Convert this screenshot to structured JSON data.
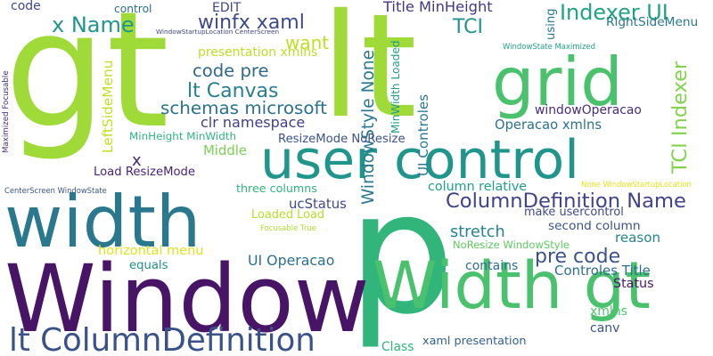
{
  "words": [
    {
      "text": "gt",
      "color": "#a0da39"
    },
    {
      "text": "lt",
      "color": "#a0da39"
    },
    {
      "text": "p",
      "color": "#31b57b"
    },
    {
      "text": "Window",
      "color": "#471466"
    },
    {
      "text": "width",
      "color": "#2a788e"
    },
    {
      "text": "user control",
      "color": "#1f958b"
    },
    {
      "text": "grid",
      "color": "#4ac16d"
    },
    {
      "text": "Width gt",
      "color": "#4ac16d"
    },
    {
      "text": "lt ColumnDefinition",
      "color": "#3a528b"
    },
    {
      "text": "x Name",
      "color": "#1f958b"
    },
    {
      "text": "winfx xaml",
      "color": "#3e4989"
    },
    {
      "text": "lt Canvas",
      "color": "#277f8e"
    },
    {
      "text": "Indexer UI",
      "color": "#20a486"
    },
    {
      "text": "schemas microsoft",
      "color": "#2c728e"
    },
    {
      "text": "code pre",
      "color": "#31688e"
    },
    {
      "text": "ColumnDefinition Name",
      "color": "#404387"
    },
    {
      "text": "TCI Indexer",
      "color": "#81d34d"
    },
    {
      "text": "RightSideMenu",
      "color": "#2a788e"
    },
    {
      "text": "TCI",
      "color": "#1f958b"
    },
    {
      "text": "want",
      "color": "#c2df23"
    },
    {
      "text": "presentation xmlns",
      "color": "#bddf26"
    },
    {
      "text": "stretch",
      "color": "#26828e"
    },
    {
      "text": "pre code",
      "color": "#3b528b"
    },
    {
      "text": "Title MinHeight",
      "color": "#443983"
    },
    {
      "text": "WindowStyle None",
      "color": "#2a788e"
    },
    {
      "text": "MinWidth Loaded",
      "color": "#1f9e89"
    },
    {
      "text": "UI Controles",
      "color": "#2a788e"
    },
    {
      "text": "windowOperacao",
      "color": "#472d7b"
    },
    {
      "text": "Operacao xmlns",
      "color": "#2c728e"
    },
    {
      "text": "clr namespace",
      "color": "#433e85"
    },
    {
      "text": "LeftSideMenu",
      "color": "#c2df23"
    },
    {
      "text": "MinHeight MinWidth",
      "color": "#2fb47c"
    },
    {
      "text": "ResizeMode NoResize",
      "color": "#3b528b"
    },
    {
      "text": "Middle",
      "color": "#7ad151"
    },
    {
      "text": "Load ResizeMode",
      "color": "#482576"
    },
    {
      "text": "x",
      "color": "#482878"
    },
    {
      "text": "three columns",
      "color": "#2fb47c"
    },
    {
      "text": "ucStatus",
      "color": "#3e4989"
    },
    {
      "text": "Loaded Load",
      "color": "#b5de2b"
    },
    {
      "text": "column relative",
      "color": "#1fa088"
    },
    {
      "text": "make usercontrol",
      "color": "#3f4788"
    },
    {
      "text": "second column",
      "color": "#3b528b"
    },
    {
      "text": "reason",
      "color": "#25858e"
    },
    {
      "text": "horizontal menu",
      "color": "#dfe318"
    },
    {
      "text": "NoResize WindowStyle",
      "color": "#5ec962"
    },
    {
      "text": "equals",
      "color": "#21908d"
    },
    {
      "text": "contains",
      "color": "#2e6e8e"
    },
    {
      "text": "Controles Title",
      "color": "#2e6f8e"
    },
    {
      "text": "Status",
      "color": "#481668"
    },
    {
      "text": "UI Operacao",
      "color": "#2d708e"
    },
    {
      "text": "xmlns",
      "color": "#50c46a"
    },
    {
      "text": "canv",
      "color": "#3a548c"
    },
    {
      "text": "Class",
      "color": "#2fb47c"
    },
    {
      "text": "xaml presentation",
      "color": "#34618d"
    },
    {
      "text": "EDIT",
      "color": "#414487"
    },
    {
      "text": "control",
      "color": "#2d718e"
    },
    {
      "text": "code",
      "color": "#3e4989"
    },
    {
      "text": "using",
      "color": "#2a778e"
    },
    {
      "text": "WindowStartupLocation CenterScreen",
      "color": "#3f4889"
    },
    {
      "text": "WindowState Maximized",
      "color": "#1fa187"
    },
    {
      "text": "Maximized Focusable",
      "color": "#46307e"
    },
    {
      "text": "CenterScreen WindowState",
      "color": "#39558c"
    },
    {
      "text": "None WindowStartupLocation",
      "color": "#e5e419"
    },
    {
      "text": "Focusable True",
      "color": "#addc30"
    }
  ]
}
